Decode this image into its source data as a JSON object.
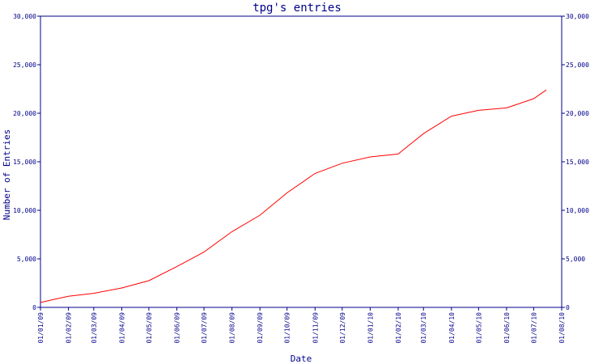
{
  "chart_data": {
    "type": "line",
    "title": "tpg's entries",
    "xlabel": "Date",
    "ylabel": "Number of Entries",
    "x_ticks": [
      "01/01/09",
      "01/02/09",
      "01/03/09",
      "01/04/09",
      "01/05/09",
      "01/06/09",
      "01/07/09",
      "01/08/09",
      "01/09/09",
      "01/10/09",
      "01/11/09",
      "01/12/09",
      "01/01/10",
      "01/02/10",
      "01/03/10",
      "01/04/10",
      "01/05/10",
      "01/06/10",
      "01/07/10",
      "01/08/10"
    ],
    "y_ticks": [
      "0",
      "5,000",
      "10,000",
      "15,000",
      "20,000",
      "25,000",
      "30,000"
    ],
    "ylim": [
      0,
      30000
    ],
    "xlim": [
      "01/01/09",
      "01/08/10"
    ],
    "grid": false,
    "line_color": "#ff0000",
    "axis_color": "#00008b",
    "series": [
      {
        "x": [
          "01/01/09",
          "15/01/09",
          "01/02/09",
          "01/03/09",
          "01/04/09",
          "01/05/09",
          "01/06/09",
          "01/07/09",
          "01/08/09",
          "01/09/09",
          "01/10/09",
          "01/11/09",
          "01/12/09",
          "01/01/10",
          "01/02/10",
          "01/03/10",
          "01/04/10",
          "01/05/10",
          "01/06/10",
          "01/07/10",
          "15/07/10"
        ],
        "y": [
          500,
          800,
          1150,
          1450,
          2000,
          2750,
          4200,
          5700,
          7800,
          9500,
          11800,
          13800,
          14850,
          15500,
          15800,
          17900,
          19700,
          20300,
          20550,
          21500,
          22400
        ]
      }
    ]
  }
}
